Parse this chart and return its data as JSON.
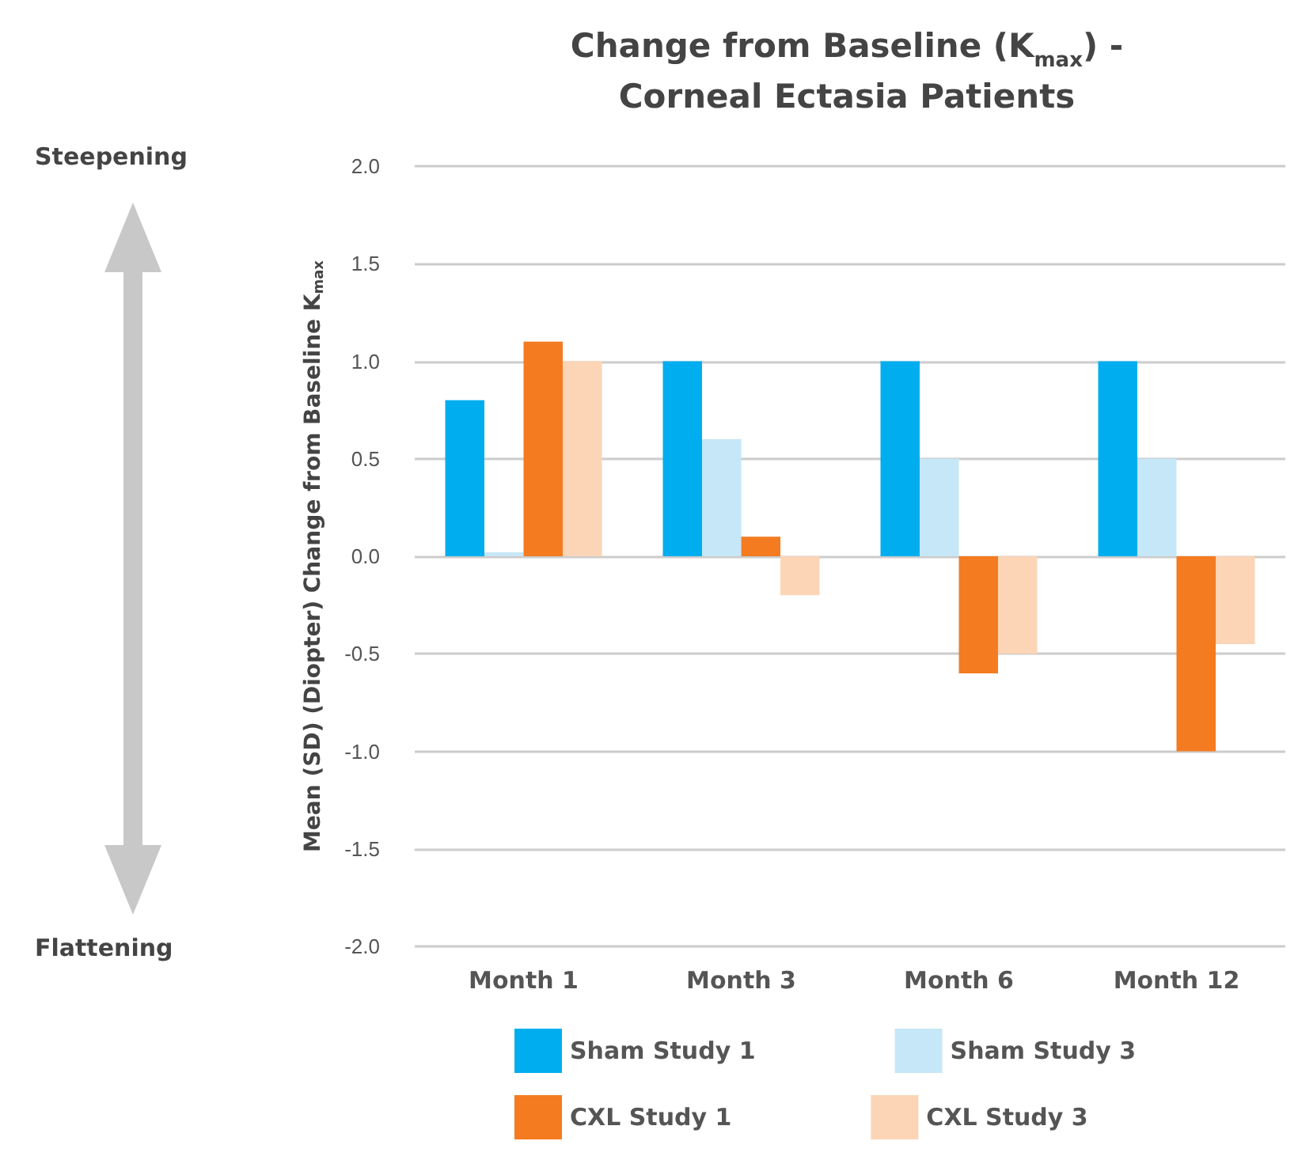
{
  "chart_data": {
    "type": "bar",
    "title": "Change from Baseline (K$_{max}$) -\nCorneal Ectasia Patients",
    "ylabel": "Mean (SD) (Diopter) Change from Baseline K$_{max}$",
    "annotations": [
      "Steepening",
      "Flattening"
    ],
    "categories": [
      "Month 1",
      "Month 3",
      "Month 6",
      "Month 12"
    ],
    "series": [
      {
        "name": "Sham Study 1",
        "color": "#00aeef",
        "values": [
          0.8,
          1.0,
          1.0,
          1.0
        ]
      },
      {
        "name": "Sham Study 3",
        "color": "#c6e7f7",
        "values": [
          0.02,
          0.6,
          0.5,
          0.5
        ]
      },
      {
        "name": "CXL Study 1",
        "color": "#f47b20",
        "values": [
          1.1,
          0.1,
          -0.6,
          -1.0
        ]
      },
      {
        "name": "CXL Study 3",
        "color": "#fbd5b5",
        "values": [
          1.0,
          -0.2,
          -0.5,
          -0.45
        ]
      }
    ],
    "ylim": [
      -2.0,
      2.0
    ],
    "yticks": [
      {
        "value": -2,
        "label": "-2.0"
      },
      {
        "value": -1.5,
        "label": "-1.5"
      },
      {
        "value": -1,
        "label": "-1.0"
      },
      {
        "value": -0.5,
        "label": "-0.5"
      },
      {
        "value": 0,
        "label": "0.0"
      },
      {
        "value": 0.5,
        "label": "0.5"
      },
      {
        "value": 1,
        "label": "1.0"
      },
      {
        "value": 1.5,
        "label": "1.5"
      },
      {
        "value": 2,
        "label": "2.0"
      }
    ],
    "grid": "y",
    "legend": "bottom"
  }
}
